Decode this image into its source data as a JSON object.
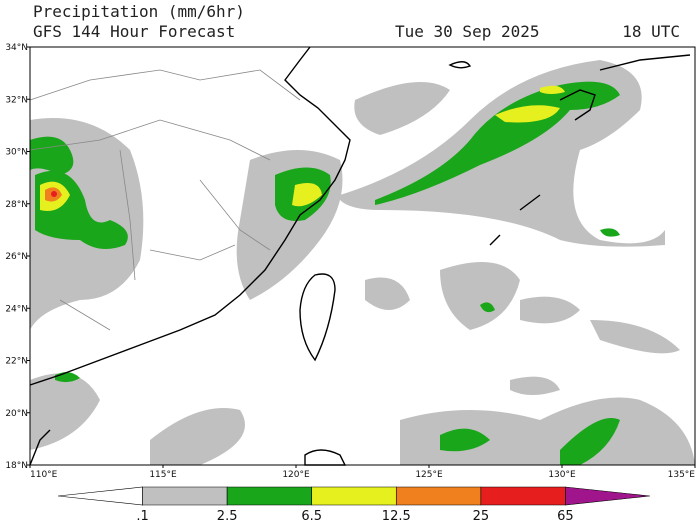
{
  "header": {
    "title": "Precipitation (mm/6hr)",
    "subtitle": "GFS 144 Hour Forecast",
    "date": "Tue 30 Sep 2025",
    "time": "18 UTC"
  },
  "map": {
    "lat_labels": [
      "34°N",
      "32°N",
      "30°N",
      "28°N",
      "26°N",
      "24°N",
      "22°N",
      "20°N",
      "18°N"
    ],
    "lon_labels": [
      "110°E",
      "115°E",
      "120°E",
      "125°E",
      "130°E",
      "135°E"
    ]
  },
  "colorbar": {
    "labels": [
      ".1",
      "2.5",
      "6.5",
      "12.5",
      "25",
      "65"
    ],
    "colors": [
      "#ffffff",
      "#c0c0c0",
      "#1aa61a",
      "#e6f01e",
      "#f0801e",
      "#e61e1e",
      "#a0148c"
    ]
  }
}
